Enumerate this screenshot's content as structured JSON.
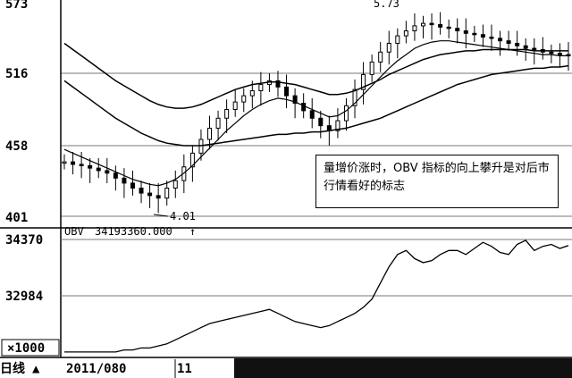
{
  "chart_data": [
    {
      "type": "candlestick",
      "panel": "price",
      "y_ticks": [
        "573",
        "516",
        "458",
        "401"
      ],
      "y_tick_values": [
        573,
        516,
        458,
        401
      ],
      "ylim": [
        398,
        575
      ],
      "annotations": {
        "low_marker": "4.01",
        "high_marker": "5.73",
        "note": "量增价涨时，OBV 指标的向上攀升是对后市行情看好的标志"
      },
      "series": [
        {
          "kind": "close",
          "values": [
            445,
            443,
            442,
            440,
            438,
            436,
            432,
            428,
            424,
            420,
            418,
            416,
            424,
            430,
            441,
            452,
            463,
            472,
            480,
            487,
            493,
            498,
            502,
            507,
            510,
            505,
            498,
            492,
            486,
            480,
            474,
            470,
            478,
            490,
            503,
            515,
            525,
            533,
            540,
            546,
            550,
            554,
            556,
            555,
            553,
            552,
            550,
            548,
            547,
            545,
            544,
            542,
            540,
            538,
            536,
            535,
            533,
            532,
            531,
            530
          ]
        },
        {
          "kind": "moving-average",
          "values": [
            455,
            452,
            449,
            446,
            443,
            440,
            437,
            434,
            431,
            429,
            427,
            426,
            428,
            431,
            436,
            442,
            449,
            456,
            463,
            470,
            476,
            482,
            487,
            491,
            494,
            496,
            495,
            493,
            490,
            487,
            484,
            481,
            482,
            486,
            492,
            499,
            506,
            513,
            520,
            526,
            531,
            536,
            539,
            541,
            542,
            542,
            541,
            540,
            539,
            538,
            537,
            536,
            535,
            534,
            533,
            532,
            531,
            531,
            530,
            530
          ]
        },
        {
          "kind": "moving-average",
          "values": [
            540,
            535,
            530,
            525,
            520,
            515,
            510,
            506,
            502,
            498,
            494,
            491,
            489,
            488,
            488,
            489,
            491,
            494,
            497,
            500,
            503,
            505,
            507,
            508,
            509,
            509,
            508,
            507,
            505,
            503,
            501,
            499,
            499,
            500,
            502,
            505,
            508,
            511,
            515,
            518,
            521,
            524,
            527,
            529,
            531,
            532,
            533,
            534,
            534,
            535,
            535,
            535,
            535,
            535,
            535,
            534,
            534,
            534,
            534,
            534
          ]
        },
        {
          "kind": "moving-average",
          "values": [
            510,
            505,
            500,
            495,
            490,
            485,
            480,
            476,
            472,
            468,
            465,
            462,
            460,
            459,
            458,
            458,
            458,
            459,
            460,
            461,
            462,
            463,
            464,
            465,
            466,
            467,
            467,
            468,
            468,
            469,
            469,
            470,
            471,
            472,
            474,
            476,
            478,
            480,
            483,
            486,
            489,
            492,
            495,
            498,
            501,
            504,
            507,
            509,
            511,
            513,
            515,
            516,
            517,
            518,
            519,
            520,
            520,
            521,
            521,
            522
          ]
        }
      ]
    },
    {
      "type": "line",
      "panel": "indicator",
      "title": "OBV",
      "current_value_label": "34193360.000",
      "y_ticks": [
        "34370",
        "32984"
      ],
      "y_tick_values": [
        34370,
        32984
      ],
      "scale_label": "×1000",
      "ylim": [
        31500,
        34700
      ],
      "values": [
        31600,
        31600,
        31600,
        31600,
        31600,
        31600,
        31600,
        31650,
        31650,
        31700,
        31700,
        31750,
        31800,
        31900,
        32000,
        32100,
        32200,
        32300,
        32350,
        32400,
        32450,
        32500,
        32550,
        32600,
        32650,
        32550,
        32450,
        32350,
        32300,
        32250,
        32200,
        32250,
        32350,
        32450,
        32550,
        32700,
        32900,
        33300,
        33700,
        34000,
        34100,
        33900,
        33800,
        33850,
        34000,
        34100,
        34100,
        34000,
        34150,
        34300,
        34200,
        34050,
        34000,
        34250,
        34350,
        34100,
        34200,
        34250,
        34150,
        34220
      ]
    }
  ],
  "footer": {
    "period_label": "日线",
    "date_label": "2011/080",
    "month_label": "11"
  }
}
